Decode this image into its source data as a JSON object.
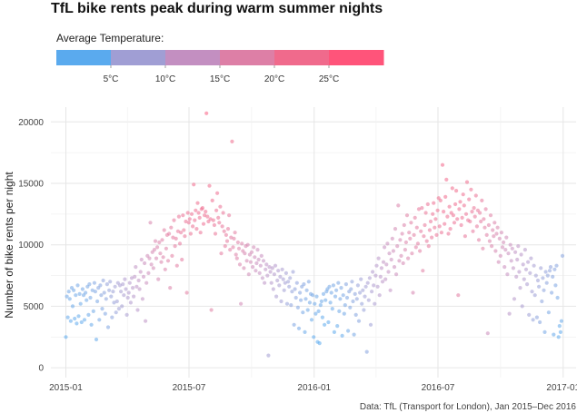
{
  "chart_data": {
    "type": "scatter",
    "title": "TfL bike rents peak during warm summer nights",
    "xlabel": "",
    "ylabel": "Number of bike rents per night",
    "caption": "Data: TfL (Transport for London), Jan 2015–Dec 2016",
    "x_range": [
      "2014-12-10",
      "2017-01-20"
    ],
    "x_ticks": [
      "2015-01",
      "2015-07",
      "2016-01",
      "2016-07",
      "2017-01"
    ],
    "ylim": [
      -800,
      21200
    ],
    "y_ticks": [
      0,
      5000,
      10000,
      15000,
      20000
    ],
    "grid": true,
    "legend": {
      "title": "Average Temperature:",
      "placement": "top-left",
      "range": [
        0,
        30
      ],
      "breaks": [
        5,
        10,
        15,
        20,
        25
      ],
      "break_labels": [
        "5°C",
        "10°C",
        "15°C",
        "20°C",
        "25°C"
      ],
      "colors": [
        "#5aaaee",
        "#a09ed4",
        "#c38fc1",
        "#dd7fa6",
        "#f06a8c",
        "#ff547a"
      ]
    },
    "x_start": "2015-01-01",
    "series": [
      {
        "comment": "nightly rents (values in rents); one value per day",
        "values": [
          2500,
          5800,
          4100,
          6200,
          5600,
          3800,
          6500,
          5000,
          6300,
          4000,
          5900,
          3600,
          6700,
          4200,
          6000,
          5200,
          3700,
          6400,
          5900,
          3900,
          6100,
          5500,
          6600,
          4300,
          6800,
          5700,
          3500,
          6300,
          4600,
          6900,
          6200,
          2300,
          5400,
          6500,
          3900,
          6700,
          5900,
          4800,
          7100,
          6100,
          4400,
          5600,
          6800,
          3300,
          6300,
          7000,
          5800,
          4100,
          6200,
          5300,
          6600,
          4500,
          5400,
          6900,
          4800,
          6700,
          6200,
          5000,
          6800,
          5900,
          7200,
          6400,
          4300,
          5700,
          6100,
          6900,
          5300,
          7300,
          6500,
          5800,
          7400,
          8200,
          6600,
          4700,
          7100,
          6400,
          7800,
          8800,
          5600,
          7400,
          8500,
          3800,
          6900,
          9100,
          7700,
          8900,
          11800,
          8400,
          9400,
          8100,
          9600,
          10300,
          8900,
          9800,
          7200,
          10200,
          9300,
          8600,
          10400,
          9000,
          11200,
          8000,
          9700,
          10800,
          8700,
          10900,
          6500,
          11400,
          9100,
          10600,
          12000,
          9900,
          10500,
          8300,
          11100,
          12300,
          10100,
          11000,
          8800,
          12400,
          11200,
          10700,
          11900,
          6100,
          12600,
          11800,
          12100,
          10900,
          12500,
          11500,
          14900,
          12000,
          12800,
          11300,
          13400,
          12600,
          12200,
          11000,
          12900,
          13000,
          11700,
          12400,
          12700,
          20700,
          12300,
          11900,
          14800,
          12100,
          4700,
          13600,
          12000,
          11600,
          10900,
          12800,
          14200,
          12200,
          11800,
          13100,
          9300,
          11500,
          12600,
          11100,
          9900,
          10800,
          10300,
          11300,
          12400,
          9600,
          10600,
          18400,
          9800,
          10500,
          11000,
          9200,
          8900,
          10200,
          9700,
          8400,
          5200,
          10100,
          9500,
          8100,
          9300,
          9900,
          8700,
          10000,
          7600,
          9200,
          8600,
          9400,
          8200,
          9800,
          9000,
          7900,
          8500,
          9600,
          8800,
          7700,
          8300,
          9100,
          7300,
          8700,
          6900,
          8000,
          8400,
          7500,
          1000,
          8200,
          7800,
          6900,
          8100,
          6400,
          7600,
          8300,
          5800,
          7100,
          7900,
          6700,
          7400,
          5400,
          8000,
          7200,
          6300,
          6900,
          7700,
          5200,
          7000,
          6600,
          7300,
          5100,
          6200,
          7800,
          3500,
          6400,
          5700,
          6900,
          4900,
          3200,
          6100,
          5500,
          6600,
          4500,
          6800,
          2900,
          5600,
          6300,
          4700,
          7000,
          5300,
          6000,
          3900,
          5900,
          2500,
          5200,
          4400,
          5800,
          2100,
          4600,
          2000,
          5100,
          5400,
          4100,
          6000,
          3500,
          5500,
          6200,
          6400,
          3700,
          6600,
          5300,
          6100,
          4800,
          6700,
          2900,
          5800,
          6300,
          3400,
          6900,
          4600,
          5600,
          6500,
          2600,
          5900,
          4400,
          5100,
          6800,
          5700,
          3000,
          6200,
          4900,
          6400,
          7000,
          5400,
          2700,
          6000,
          4300,
          5600,
          6700,
          3800,
          6100,
          7200,
          5200,
          6300,
          4700,
          5800,
          6600,
          1300,
          6900,
          5500,
          7300,
          3500,
          6200,
          7800,
          6700,
          5200,
          7500,
          8300,
          6600,
          8900,
          5900,
          7400,
          8100,
          7000,
          8600,
          9800,
          7200,
          8400,
          10100,
          7800,
          9300,
          6300,
          8800,
          10500,
          9500,
          8200,
          11300,
          7600,
          9900,
          13200,
          8700,
          10400,
          9100,
          10900,
          8500,
          11600,
          9600,
          10200,
          12400,
          8900,
          11000,
          10500,
          11800,
          9300,
          6100,
          10800,
          12200,
          9800,
          11400,
          10100,
          12900,
          9500,
          11100,
          13000,
          7900,
          10700,
          11600,
          12600,
          10300,
          13300,
          9900,
          11200,
          11900,
          10600,
          12500,
          13400,
          11400,
          12100,
          10800,
          12800,
          13800,
          11500,
          13600,
          11000,
          16500,
          12700,
          11700,
          13900,
          15300,
          12300,
          10900,
          13100,
          11300,
          12600,
          14600,
          12400,
          11800,
          13300,
          14400,
          12100,
          5900,
          12900,
          13500,
          11600,
          12200,
          14100,
          13200,
          10700,
          12500,
          15100,
          12000,
          13700,
          11900,
          14500,
          12700,
          11100,
          13000,
          12300,
          14000,
          11500,
          12800,
          10400,
          12600,
          11900,
          13600,
          9700,
          12100,
          11400,
          12900,
          10800,
          2800,
          11600,
          10300,
          12400,
          9900,
          11200,
          10700,
          11800,
          9500,
          10900,
          11400,
          8600,
          10500,
          9100,
          11000,
          9800,
          10200,
          8200,
          9600,
          10600,
          7600,
          9300,
          4400,
          10000,
          8700,
          9700,
          8100,
          5600,
          9400,
          7400,
          8800,
          9900,
          7800,
          6500,
          9200,
          5000,
          8400,
          7200,
          9600,
          8000,
          6800,
          8600,
          4300,
          7700,
          8900,
          6200,
          3900,
          8300,
          5900,
          7500,
          4100,
          7100,
          6600,
          3700,
          8100,
          5400,
          7300,
          6300,
          2900,
          7800,
          6900,
          7500,
          4500,
          7900,
          8200,
          6100,
          7400,
          2700,
          8000,
          6700,
          8300,
          5700,
          2500,
          3400,
          2900,
          3800,
          9100
        ]
      }
    ]
  }
}
